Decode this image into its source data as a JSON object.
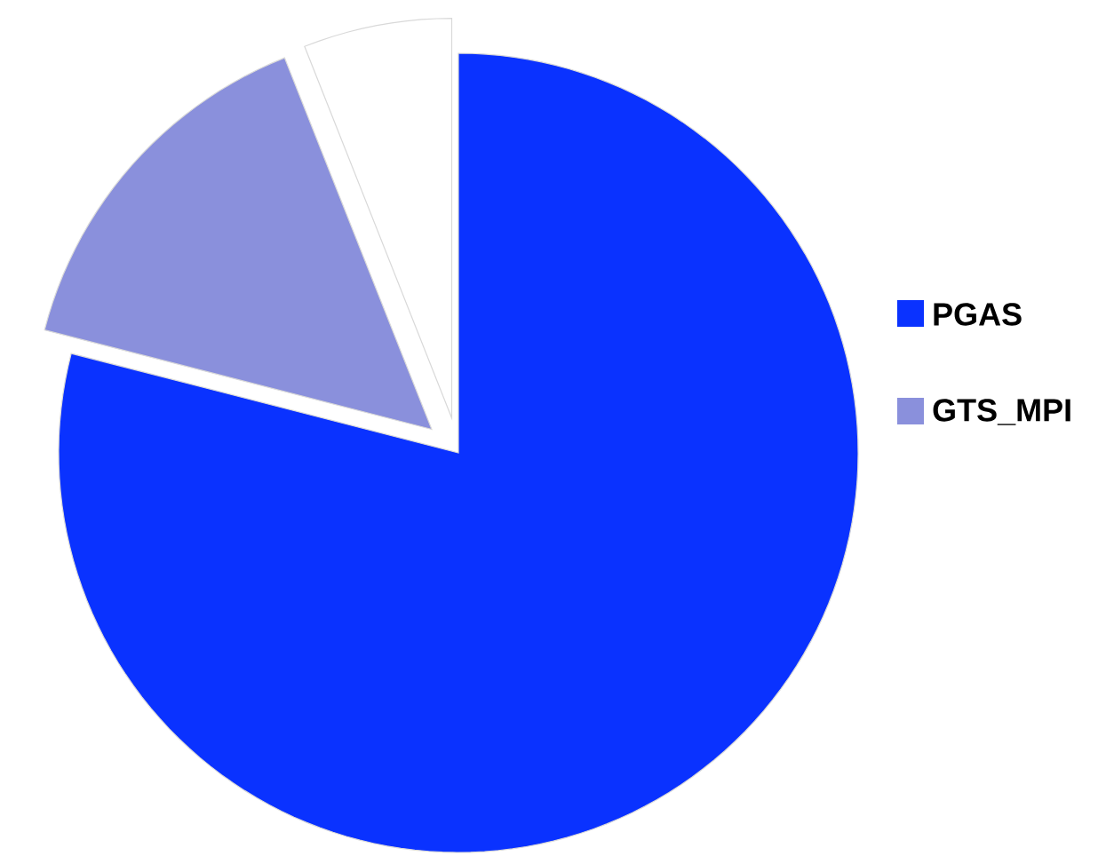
{
  "chart_data": {
    "type": "pie",
    "categories": [
      "PGAS",
      "GTS_MPI",
      null
    ],
    "values": [
      79,
      15,
      6
    ],
    "colors": [
      "#0a32ff",
      "#8a90dc",
      "#ffffff"
    ],
    "legend": "right"
  }
}
